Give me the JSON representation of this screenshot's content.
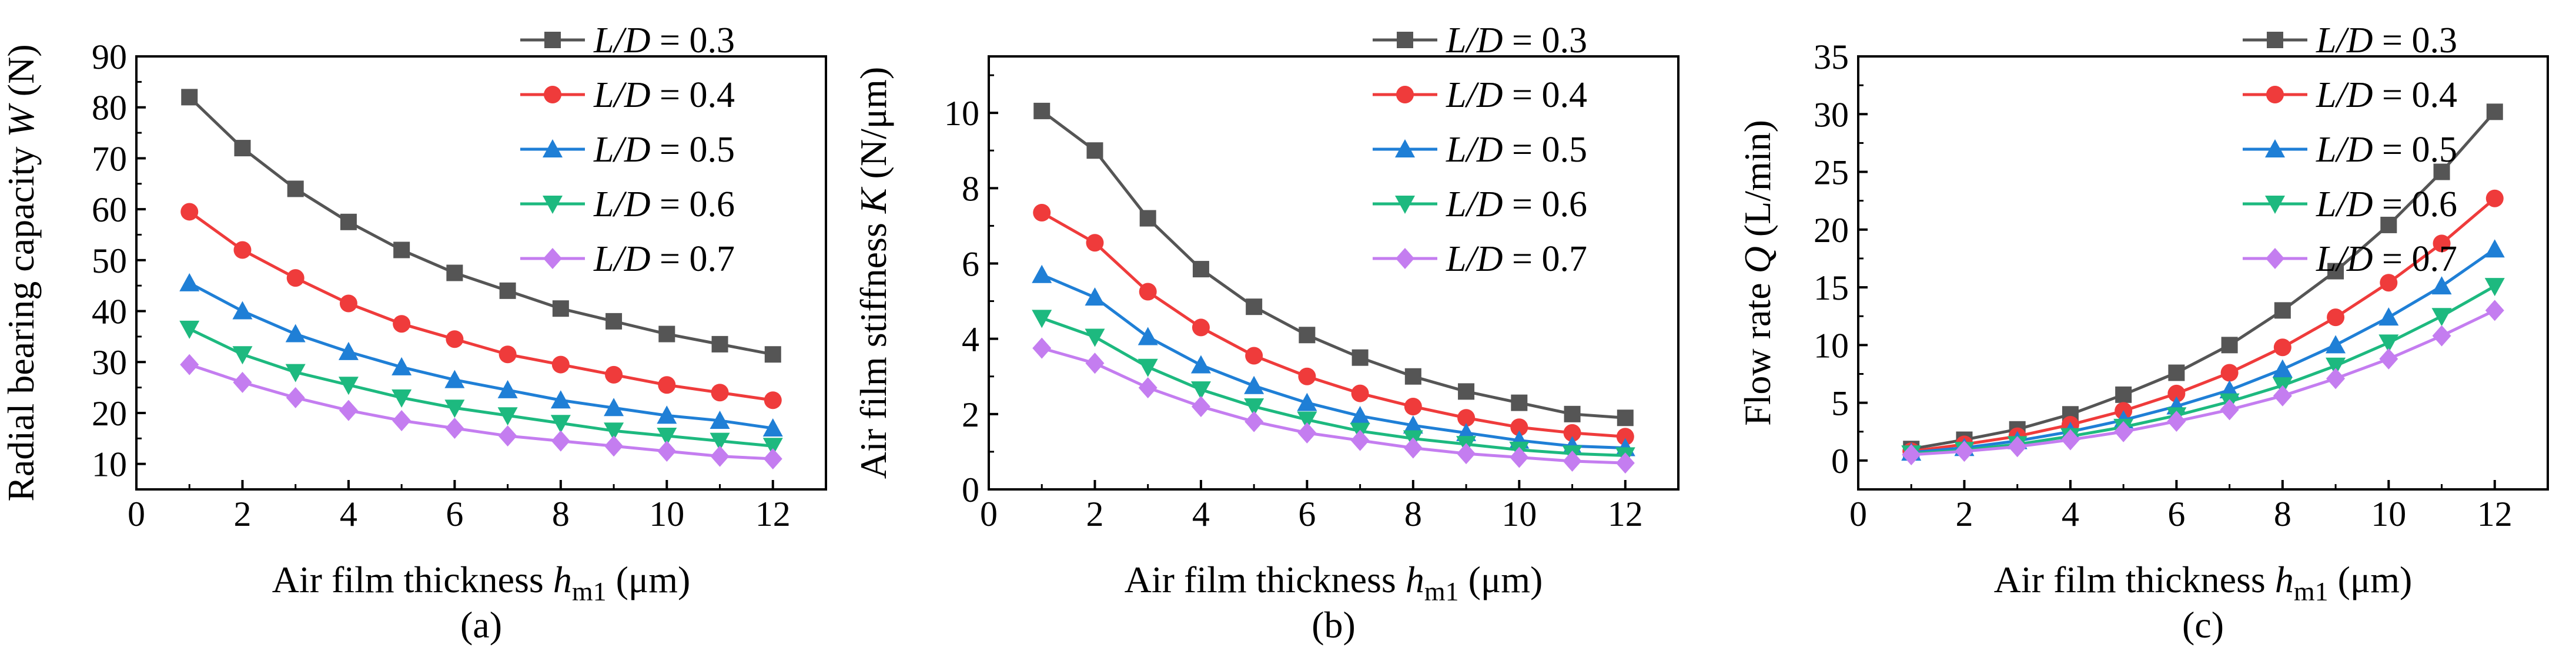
{
  "colors": {
    "s1": "#555555",
    "s2": "#ef3b3b",
    "s3": "#1f7fd6",
    "s4": "#1db97f",
    "s5": "#c47df0"
  },
  "legend_labels": {
    "prefix": "L/D",
    "eq": " = "
  },
  "chart_data": [
    {
      "type": "line",
      "title": "",
      "caption": "(a)",
      "xlabel": {
        "main": "Air film thickness ",
        "var": "h",
        "sub": "m1",
        "unit": " (μm)"
      },
      "ylabel": {
        "main": "Radial bearing capacity ",
        "var": "W",
        "unit": " (N)"
      },
      "xlim": [
        0,
        13
      ],
      "ylim": [
        5,
        90
      ],
      "xticks": [
        0,
        2,
        4,
        6,
        8,
        10,
        12
      ],
      "yticks": [
        10,
        20,
        30,
        40,
        50,
        60,
        70,
        80,
        90
      ],
      "x": [
        1,
        2,
        3,
        4,
        5,
        6,
        7,
        8,
        9,
        10,
        11,
        12
      ],
      "series": [
        {
          "name": "0.3",
          "marker": "square",
          "values": [
            82,
            72,
            64,
            57.5,
            52,
            47.5,
            44,
            40.5,
            38,
            35.5,
            33.5,
            31.5
          ]
        },
        {
          "name": "0.4",
          "marker": "circle",
          "values": [
            59.5,
            52,
            46.5,
            41.5,
            37.5,
            34.5,
            31.5,
            29.5,
            27.5,
            25.5,
            24,
            22.5
          ]
        },
        {
          "name": "0.5",
          "marker": "triangle-up",
          "values": [
            45.5,
            40,
            35.5,
            32,
            29,
            26.5,
            24.5,
            22.5,
            21,
            19.5,
            18.5,
            17
          ]
        },
        {
          "name": "0.6",
          "marker": "triangle-down",
          "values": [
            36.5,
            31.5,
            28,
            25.5,
            23,
            21,
            19.5,
            18,
            16.5,
            15.5,
            14.5,
            13.5
          ]
        },
        {
          "name": "0.7",
          "marker": "diamond",
          "values": [
            29.5,
            26,
            23,
            20.5,
            18.5,
            17,
            15.5,
            14.5,
            13.5,
            12.5,
            11.5,
            11
          ]
        }
      ]
    },
    {
      "type": "line",
      "title": "",
      "caption": "(b)",
      "xlabel": {
        "main": "Air film thickness ",
        "var": "h",
        "sub": "m1",
        "unit": " (μm)"
      },
      "ylabel": {
        "main": "Air film stiffness ",
        "var": "K",
        "unit": " (N/μm)"
      },
      "xlim": [
        0,
        13
      ],
      "ylim": [
        0,
        11.5
      ],
      "xticks": [
        0,
        2,
        4,
        6,
        8,
        10,
        12
      ],
      "yticks": [
        0,
        2,
        4,
        6,
        8,
        10
      ],
      "x": [
        1,
        2,
        3,
        4,
        5,
        6,
        7,
        8,
        9,
        10,
        11,
        12
      ],
      "series": [
        {
          "name": "0.3",
          "marker": "square",
          "values": [
            10.05,
            9.0,
            7.2,
            5.85,
            4.85,
            4.1,
            3.5,
            3.0,
            2.6,
            2.3,
            2.0,
            1.9
          ]
        },
        {
          "name": "0.4",
          "marker": "circle",
          "values": [
            7.35,
            6.55,
            5.25,
            4.3,
            3.55,
            3.0,
            2.55,
            2.2,
            1.9,
            1.65,
            1.5,
            1.4
          ]
        },
        {
          "name": "0.5",
          "marker": "triangle-up",
          "values": [
            5.7,
            5.1,
            4.05,
            3.3,
            2.75,
            2.3,
            1.95,
            1.7,
            1.5,
            1.3,
            1.15,
            1.1
          ]
        },
        {
          "name": "0.6",
          "marker": "triangle-down",
          "values": [
            4.55,
            4.05,
            3.25,
            2.65,
            2.2,
            1.85,
            1.55,
            1.35,
            1.2,
            1.05,
            0.95,
            0.9
          ]
        },
        {
          "name": "0.7",
          "marker": "diamond",
          "values": [
            3.75,
            3.35,
            2.7,
            2.2,
            1.8,
            1.5,
            1.3,
            1.1,
            0.95,
            0.85,
            0.75,
            0.7
          ]
        }
      ]
    },
    {
      "type": "line",
      "title": "",
      "caption": "(c)",
      "xlabel": {
        "main": "Air film thickness ",
        "var": "h",
        "sub": "m1",
        "unit": " (μm)"
      },
      "ylabel": {
        "main": "Flow rate ",
        "var": "Q",
        "unit": " (L/min)"
      },
      "xlim": [
        0,
        13
      ],
      "ylim": [
        -2.5,
        35
      ],
      "xticks": [
        0,
        2,
        4,
        6,
        8,
        10,
        12
      ],
      "yticks": [
        0,
        5,
        10,
        15,
        20,
        25,
        30,
        35
      ],
      "x": [
        1,
        2,
        3,
        4,
        5,
        6,
        7,
        8,
        9,
        10,
        11,
        12
      ],
      "series": [
        {
          "name": "0.3",
          "marker": "square",
          "values": [
            1.0,
            1.8,
            2.7,
            4.0,
            5.7,
            7.6,
            10.0,
            13.0,
            16.4,
            20.4,
            25.0,
            30.2
          ]
        },
        {
          "name": "0.4",
          "marker": "circle",
          "values": [
            0.8,
            1.4,
            2.1,
            3.1,
            4.3,
            5.8,
            7.6,
            9.8,
            12.4,
            15.4,
            18.8,
            22.7
          ]
        },
        {
          "name": "0.5",
          "marker": "triangle-up",
          "values": [
            0.7,
            1.1,
            1.7,
            2.5,
            3.5,
            4.7,
            6.1,
            7.9,
            10.0,
            12.4,
            15.1,
            18.3
          ]
        },
        {
          "name": "0.6",
          "marker": "triangle-down",
          "values": [
            0.6,
            0.9,
            1.4,
            2.1,
            2.9,
            3.9,
            5.1,
            6.5,
            8.2,
            10.2,
            12.5,
            15.1
          ]
        },
        {
          "name": "0.7",
          "marker": "diamond",
          "values": [
            0.5,
            0.8,
            1.2,
            1.8,
            2.5,
            3.4,
            4.4,
            5.6,
            7.1,
            8.8,
            10.8,
            13.0
          ]
        }
      ]
    }
  ]
}
